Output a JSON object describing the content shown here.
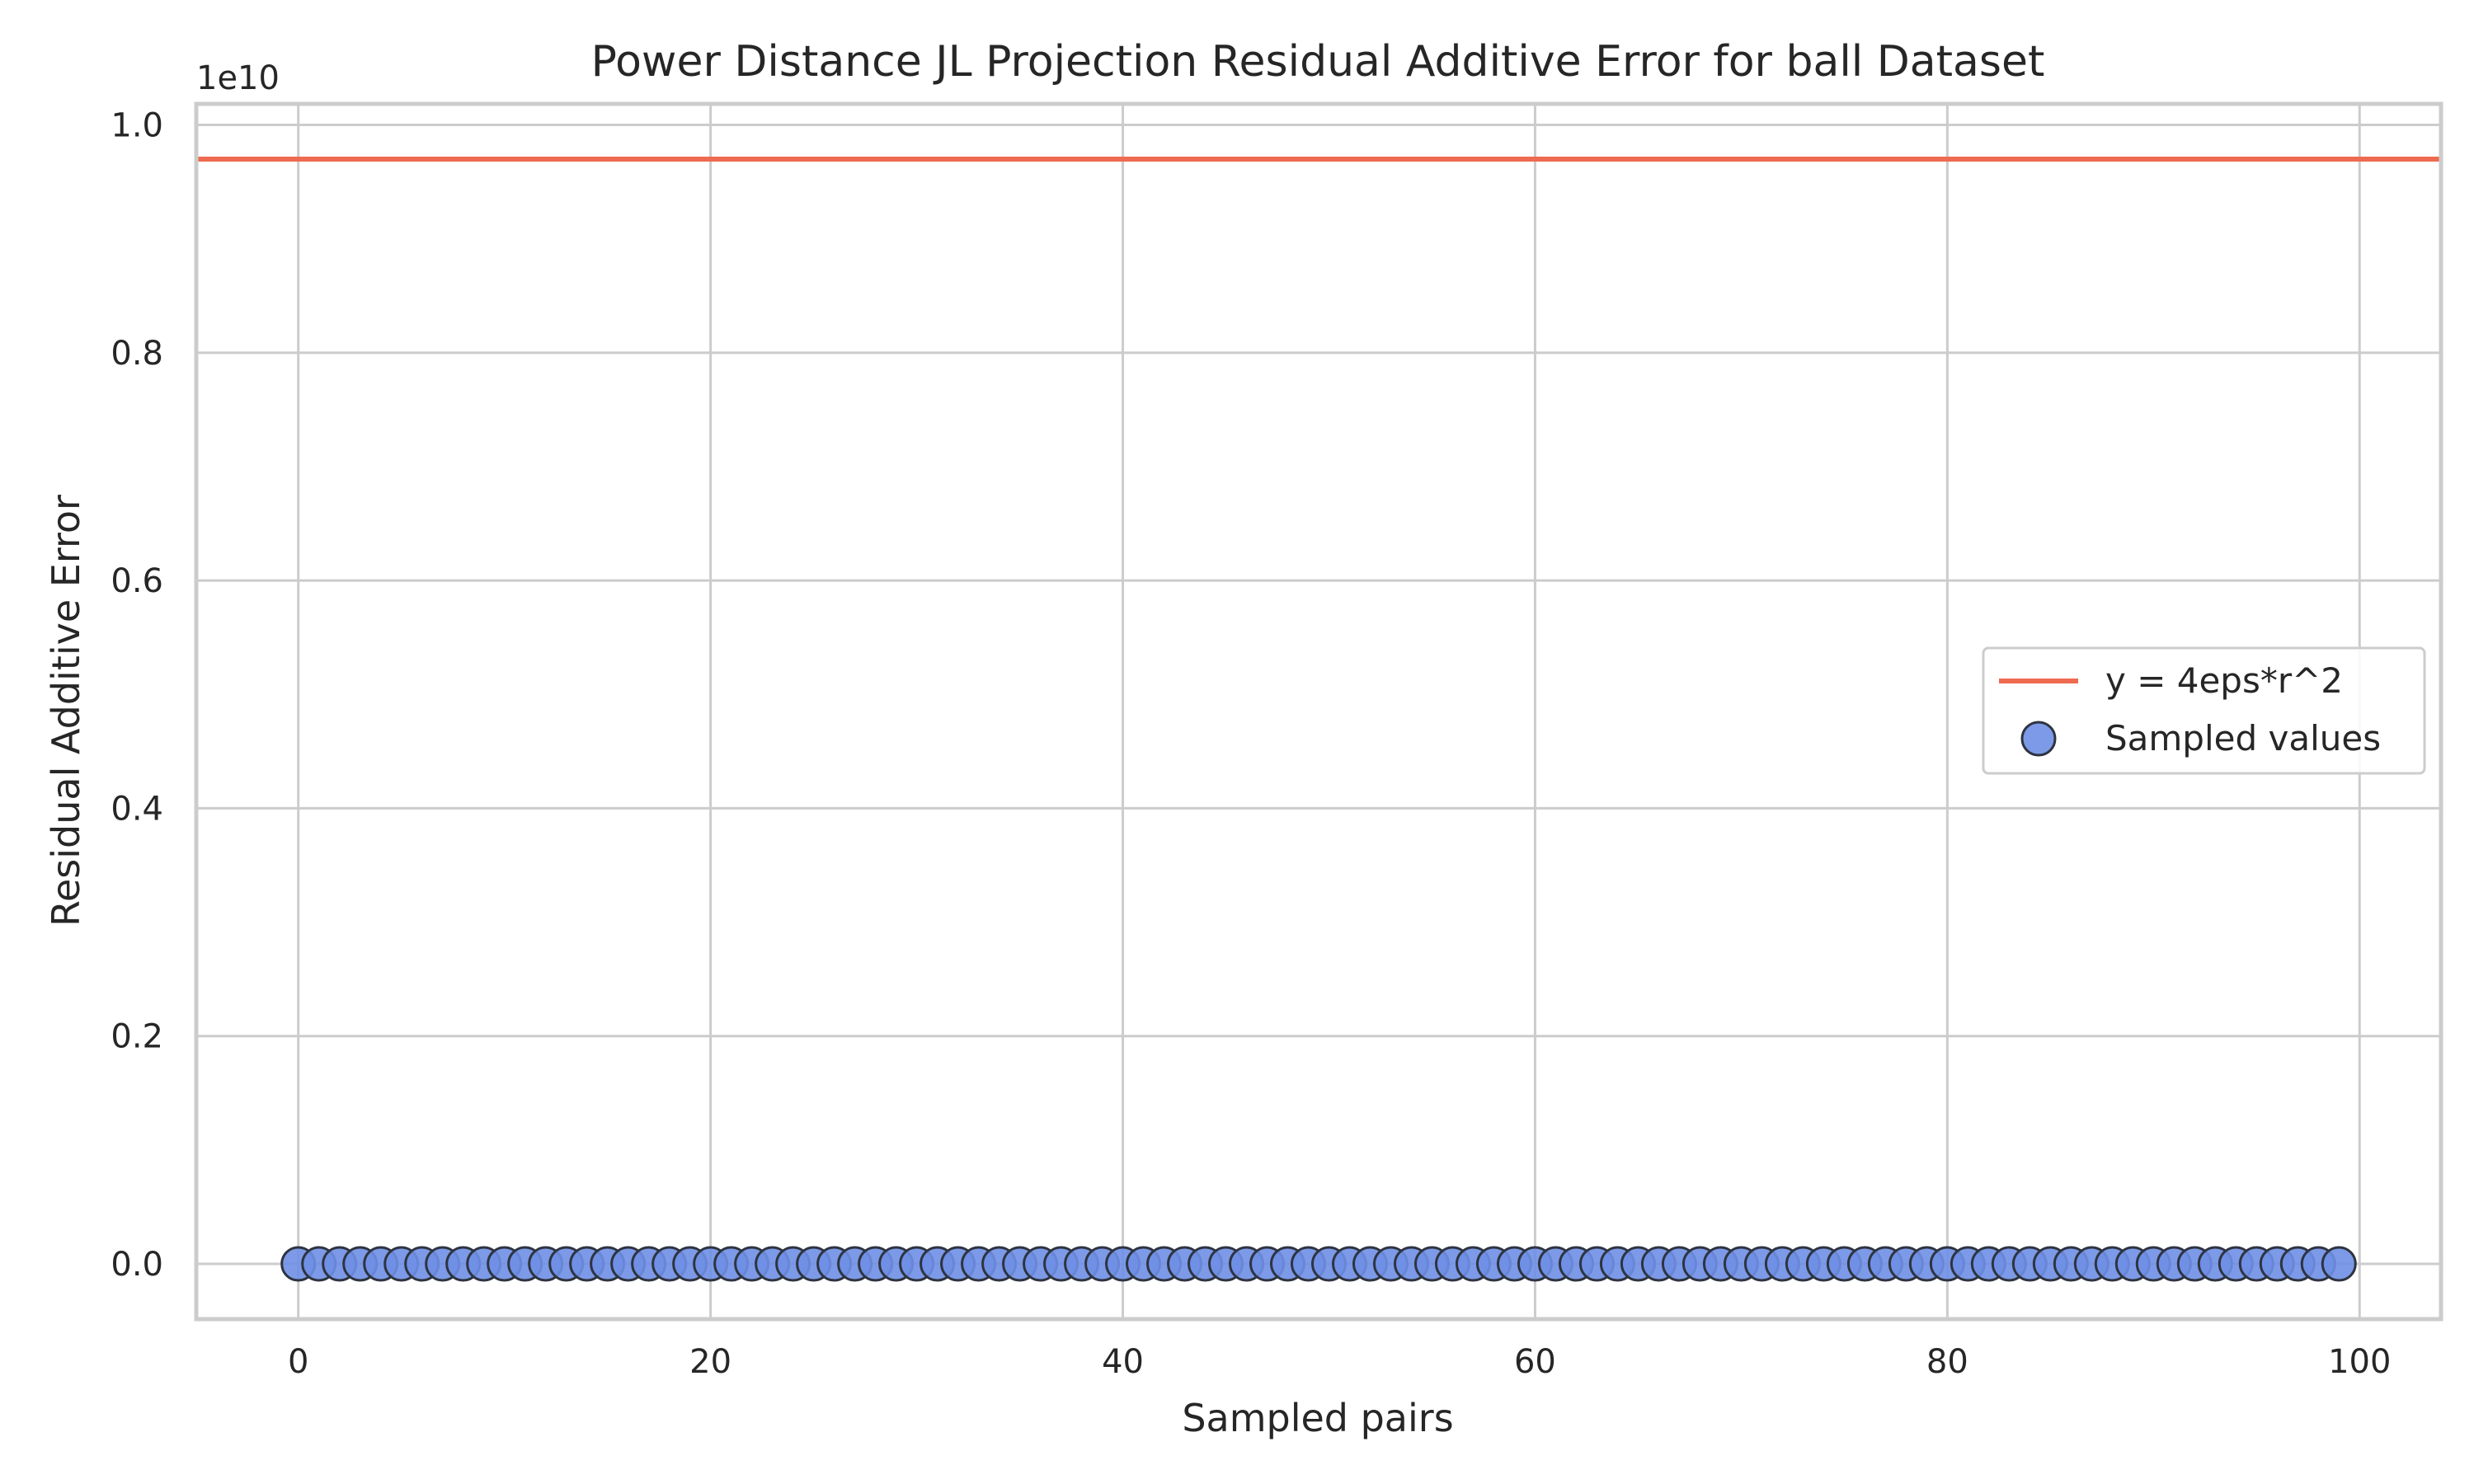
{
  "chart_data": {
    "type": "scatter",
    "title": "Power Distance JL Projection Residual Additive Error for ball Dataset",
    "xlabel": "Sampled pairs",
    "ylabel": "Residual Additive Error",
    "y_offset_label": "1e10",
    "xlim": [
      -4.95,
      103.95
    ],
    "ylim": [
      -0.0485,
      1.0185
    ],
    "xticks": [
      0,
      20,
      40,
      60,
      80,
      100
    ],
    "xtick_labels": [
      "0",
      "20",
      "40",
      "60",
      "80",
      "100"
    ],
    "yticks": [
      0.0,
      0.2,
      0.4,
      0.6,
      0.8,
      1.0
    ],
    "ytick_labels": [
      "0.0",
      "0.2",
      "0.4",
      "0.6",
      "0.8",
      "1.0"
    ],
    "grid": true,
    "legend_position": "center-right",
    "series": [
      {
        "name": "y = 4eps*r^2",
        "kind": "hline",
        "y": 0.97,
        "color": "#ee6a50"
      },
      {
        "name": "Sampled values",
        "kind": "scatter",
        "color": "#6f8fe6",
        "edge_color": "#2e3440",
        "x_start": 0,
        "x_end": 99,
        "y": 0.0
      }
    ]
  }
}
